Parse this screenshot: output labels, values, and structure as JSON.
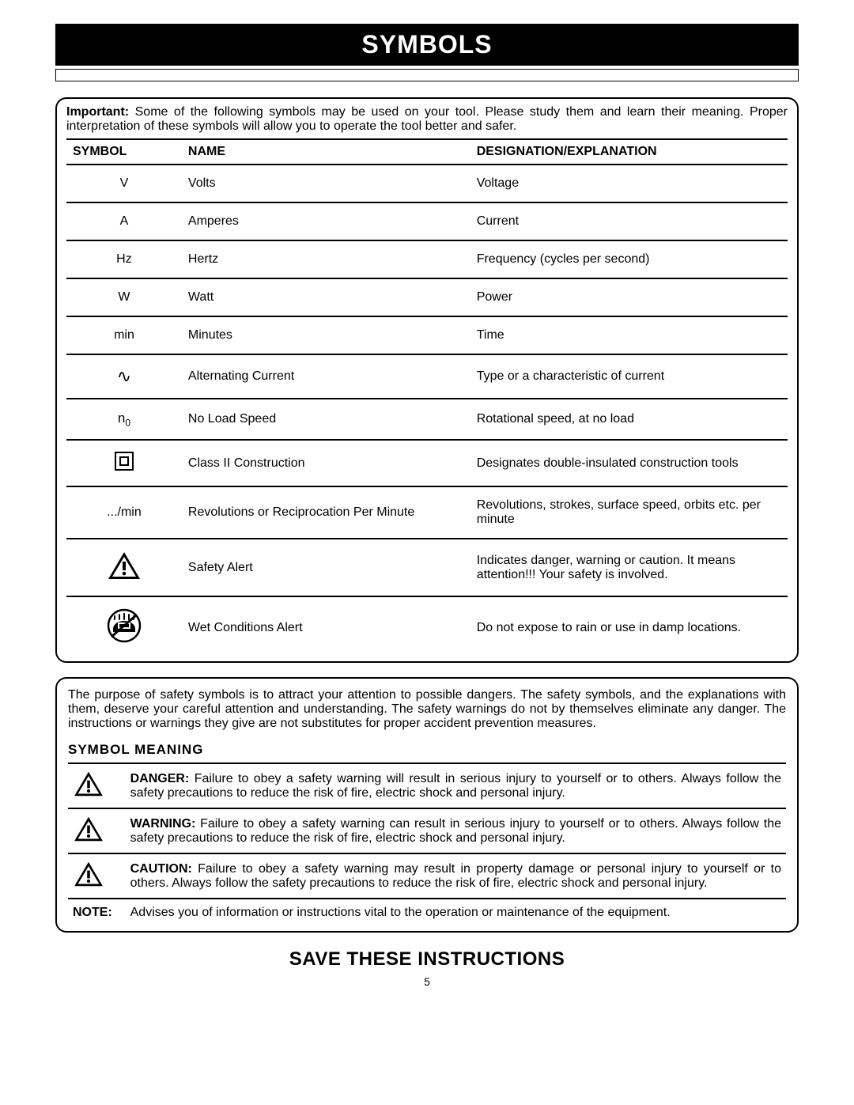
{
  "banner": "SYMBOLS",
  "intro_bold": "Important:",
  "intro_text": " Some of the following symbols may be used on your tool. Please study them and learn their meaning. Proper interpretation of these symbols will allow you to operate the tool better and safer.",
  "columns": {
    "symbol": "SYMBOL",
    "name": "NAME",
    "desc": "DESIGNATION/EXPLANATION"
  },
  "rows": [
    {
      "sym_text": "V",
      "name": "Volts",
      "desc": "Voltage"
    },
    {
      "sym_text": "A",
      "name": "Amperes",
      "desc": "Current"
    },
    {
      "sym_text": "Hz",
      "name": "Hertz",
      "desc": "Frequency (cycles per second)"
    },
    {
      "sym_text": "W",
      "name": "Watt",
      "desc": "Power"
    },
    {
      "sym_text": "min",
      "name": "Minutes",
      "desc": "Time"
    },
    {
      "sym_icon": "sine",
      "name": "Alternating Current",
      "desc": "Type or a characteristic of current"
    },
    {
      "sym_icon": "n0",
      "name": "No Load Speed",
      "desc": "Rotational speed, at no load"
    },
    {
      "sym_icon": "double-box",
      "name": "Class II Construction",
      "desc": "Designates double-insulated construction tools"
    },
    {
      "sym_text": ".../min",
      "name": "Revolutions or Reciprocation Per Minute",
      "desc": "Revolutions, strokes, surface speed, orbits etc. per minute"
    },
    {
      "sym_icon": "alert",
      "name": "Safety Alert",
      "desc": "Indicates danger, warning or caution. It means attention!!! Your safety is involved."
    },
    {
      "sym_icon": "wet",
      "name": "Wet Conditions Alert",
      "desc": "Do not expose to rain or use in damp locations."
    }
  ],
  "meaning_intro": "The purpose of safety symbols is to attract your attention to possible dangers. The safety symbols, and the explanations with them, deserve your careful attention and understanding. The safety warnings do not by themselves eliminate any danger. The instructions or warnings they give are not substitutes for proper accident prevention measures.",
  "meaning_heading": "SYMBOL  MEANING",
  "meanings": [
    {
      "icon": "alert",
      "label": "DANGER:",
      "text": " Failure to obey a safety warning will result in serious injury to yourself or to others. Always follow the safety precautions to reduce the risk of fire, electric shock and personal injury."
    },
    {
      "icon": "alert",
      "label": "WARNING:",
      "text": " Failure to obey a safety warning can result in serious injury to yourself or to others. Always follow the safety precautions to reduce the risk of fire, electric shock and personal injury."
    },
    {
      "icon": "alert",
      "label": "CAUTION:",
      "text": " Failure to obey a safety warning may result in property damage or personal injury to yourself or to others. Always follow the safety precautions to reduce the risk of fire, electric shock and personal injury."
    },
    {
      "icon": "",
      "label": "NOTE:",
      "text": "Advises you of information or instructions vital to the operation or maintenance of the equipment."
    }
  ],
  "save": "SAVE THESE INSTRUCTIONS",
  "page": "5"
}
